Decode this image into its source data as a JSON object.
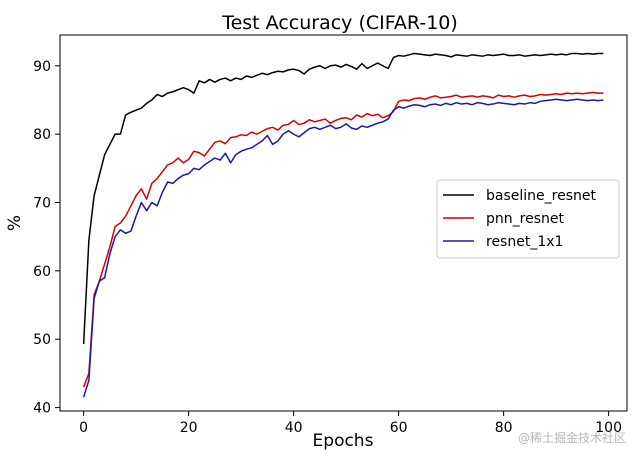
{
  "chart_data": {
    "type": "line",
    "title": "Test Accuracy (CIFAR-10)",
    "xlabel": "Epochs",
    "ylabel": "%",
    "xlim": [
      -4.5,
      103.5
    ],
    "ylim": [
      39.5,
      94.5
    ],
    "xticks": [
      0,
      20,
      40,
      60,
      80,
      100
    ],
    "yticks": [
      40,
      50,
      60,
      70,
      80,
      90
    ],
    "grid": false,
    "legend_position": "center-right",
    "x": [
      0,
      1,
      2,
      3,
      4,
      5,
      6,
      7,
      8,
      9,
      10,
      11,
      12,
      13,
      14,
      15,
      16,
      17,
      18,
      19,
      20,
      21,
      22,
      23,
      24,
      25,
      26,
      27,
      28,
      29,
      30,
      31,
      32,
      33,
      34,
      35,
      36,
      37,
      38,
      39,
      40,
      41,
      42,
      43,
      44,
      45,
      46,
      47,
      48,
      49,
      50,
      51,
      52,
      53,
      54,
      55,
      56,
      57,
      58,
      59,
      60,
      61,
      62,
      63,
      64,
      65,
      66,
      67,
      68,
      69,
      70,
      71,
      72,
      73,
      74,
      75,
      76,
      77,
      78,
      79,
      80,
      81,
      82,
      83,
      84,
      85,
      86,
      87,
      88,
      89,
      90,
      91,
      92,
      93,
      94,
      95,
      96,
      97,
      98,
      99
    ],
    "series": [
      {
        "name": "baseline_resnet",
        "color": "#000000",
        "values": [
          49.3,
          64.5,
          71.0,
          74.0,
          77.0,
          78.5,
          80.0,
          80.0,
          82.8,
          83.2,
          83.5,
          83.8,
          84.5,
          85.0,
          85.8,
          85.5,
          86.0,
          86.2,
          86.5,
          86.8,
          86.5,
          86.0,
          87.8,
          87.5,
          88.0,
          87.6,
          88.0,
          88.2,
          87.8,
          88.2,
          88.0,
          88.5,
          88.3,
          88.6,
          88.9,
          88.7,
          89.0,
          89.2,
          89.1,
          89.4,
          89.5,
          89.3,
          88.8,
          89.5,
          89.8,
          90.0,
          89.6,
          90.0,
          90.1,
          89.8,
          90.2,
          89.9,
          89.5,
          90.3,
          89.6,
          90.0,
          90.4,
          90.0,
          89.6,
          91.2,
          91.5,
          91.4,
          91.6,
          91.8,
          91.7,
          91.6,
          91.5,
          91.7,
          91.6,
          91.5,
          91.3,
          91.6,
          91.5,
          91.4,
          91.6,
          91.5,
          91.4,
          91.6,
          91.5,
          91.6,
          91.7,
          91.5,
          91.5,
          91.6,
          91.4,
          91.5,
          91.6,
          91.5,
          91.6,
          91.7,
          91.6,
          91.7,
          91.6,
          91.8,
          91.8,
          91.7,
          91.8,
          91.7,
          91.8,
          91.8
        ]
      },
      {
        "name": "pnn_resnet",
        "color": "#d40000",
        "values": [
          43.0,
          45.0,
          56.5,
          58.5,
          61.0,
          63.5,
          66.5,
          67.0,
          68.0,
          69.5,
          71.0,
          72.0,
          70.5,
          72.8,
          73.5,
          74.5,
          75.5,
          75.8,
          76.5,
          75.8,
          76.3,
          77.5,
          77.3,
          76.8,
          77.8,
          78.8,
          79.0,
          78.6,
          79.5,
          79.6,
          79.9,
          79.8,
          80.3,
          80.0,
          80.4,
          80.8,
          81.0,
          80.6,
          81.3,
          81.4,
          82.0,
          81.4,
          81.6,
          82.1,
          81.8,
          82.0,
          82.2,
          81.6,
          82.0,
          82.3,
          82.4,
          82.1,
          82.8,
          82.5,
          83.0,
          82.7,
          82.9,
          82.4,
          82.7,
          83.3,
          84.8,
          85.0,
          84.9,
          85.2,
          85.3,
          85.1,
          85.4,
          85.6,
          85.3,
          85.4,
          85.5,
          85.7,
          85.4,
          85.5,
          85.6,
          85.4,
          85.6,
          85.5,
          85.3,
          85.7,
          85.5,
          85.6,
          85.4,
          85.6,
          85.7,
          85.5,
          85.6,
          85.8,
          85.7,
          85.8,
          85.9,
          85.8,
          86.0,
          85.9,
          86.0,
          85.9,
          86.0,
          86.1,
          86.0,
          86.0
        ]
      },
      {
        "name": "resnet_1x1",
        "color": "#1a1aa8",
        "values": [
          41.5,
          44.0,
          56.0,
          58.5,
          59.0,
          62.5,
          65.0,
          66.0,
          65.5,
          65.8,
          68.0,
          70.0,
          68.8,
          70.0,
          69.5,
          71.5,
          73.0,
          72.8,
          73.5,
          74.0,
          74.2,
          75.0,
          74.8,
          75.5,
          76.0,
          76.5,
          76.2,
          77.2,
          75.8,
          77.0,
          77.5,
          77.8,
          78.0,
          78.5,
          79.0,
          79.8,
          78.5,
          79.0,
          80.0,
          80.5,
          80.0,
          79.6,
          80.2,
          80.8,
          81.0,
          80.7,
          81.0,
          81.3,
          80.8,
          81.0,
          81.5,
          80.9,
          80.7,
          81.2,
          81.0,
          81.3,
          81.6,
          81.8,
          82.2,
          83.5,
          84.0,
          83.8,
          84.1,
          84.3,
          84.2,
          84.0,
          84.3,
          84.4,
          84.2,
          84.5,
          84.3,
          84.6,
          84.4,
          84.5,
          84.3,
          84.6,
          84.5,
          84.3,
          84.4,
          84.6,
          84.5,
          84.4,
          84.3,
          84.5,
          84.4,
          84.6,
          84.5,
          84.8,
          84.9,
          85.0,
          85.1,
          85.0,
          84.9,
          85.0,
          85.1,
          85.0,
          84.9,
          85.0,
          84.9,
          85.0
        ]
      }
    ]
  },
  "watermark": "@稀土掘金技术社区"
}
